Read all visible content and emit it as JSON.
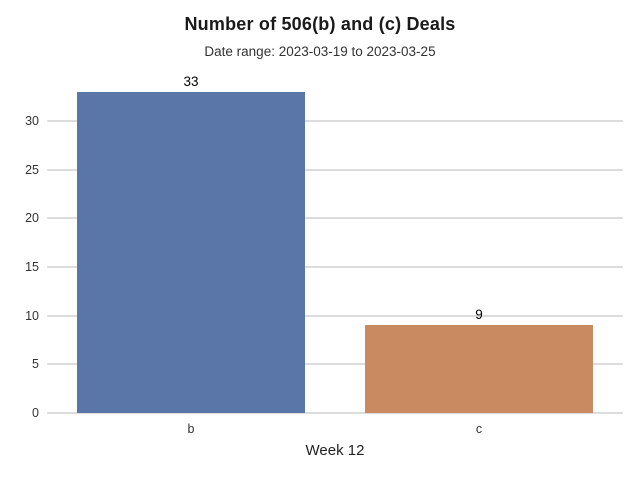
{
  "chart_data": {
    "type": "bar",
    "title": "Number of 506(b) and (c) Deals",
    "subtitle": "Date range: 2023-03-19 to 2023-03-25",
    "categories": [
      "b",
      "c"
    ],
    "values": [
      33,
      9
    ],
    "value_labels": [
      "33",
      "9"
    ],
    "bar_colors": [
      "#5a76a8",
      "#ca8a61"
    ],
    "xlabel": "Week 12",
    "ylabel": "",
    "yticks": [
      0,
      5,
      10,
      15,
      20,
      25,
      30
    ],
    "ylim": [
      0,
      35.25
    ],
    "grid": "horizontal",
    "legend": "none",
    "colors": {
      "background": "#ffffff",
      "gridline": "#dcdcdc",
      "title_text": "#1a1a1a",
      "subtitle_text": "#333333",
      "tick_text": "#333333",
      "value_label_text": "#000000"
    }
  }
}
